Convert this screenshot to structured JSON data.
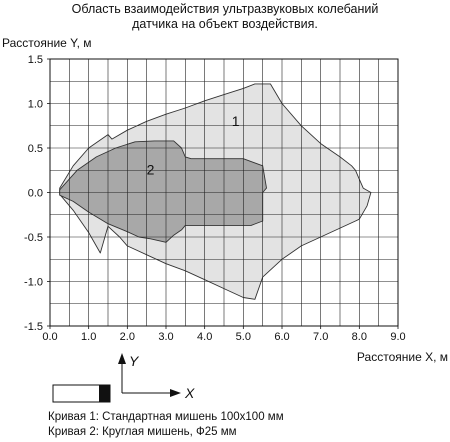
{
  "title_line1": "Область взаимодействия ультразвуковых колебаний",
  "title_line2": "датчика на объект воздействия.",
  "chart_data": {
    "type": "area",
    "xlabel": "Расстояние X, м",
    "ylabel": "Расстояние Y, м",
    "xlim": [
      0,
      9
    ],
    "ylim": [
      -1.5,
      1.5
    ],
    "grid": true,
    "x_ticks": [
      "0.0",
      "1.0",
      "2.0",
      "3.0",
      "4.0",
      "5.0",
      "6.0",
      "7.0",
      "8.0",
      "9.0"
    ],
    "y_ticks": [
      "1.5",
      "1.0",
      "0.5",
      "0.0",
      "-0.5",
      "-1.0",
      "-1.5"
    ],
    "series": [
      {
        "name": "1",
        "color": "#e3e3e3",
        "x": [
          0.25,
          0.6,
          1.0,
          1.5,
          1.6,
          2.0,
          2.5,
          3.0,
          3.5,
          4.0,
          4.5,
          5.0,
          5.3,
          5.7,
          6.0,
          6.5,
          7.0,
          7.5,
          7.8,
          7.9,
          8.0,
          8.1,
          8.3,
          8.2,
          8.0,
          7.9,
          7.5,
          7.0,
          6.5,
          6.0,
          5.5,
          5.3,
          5.0,
          4.5,
          4.0,
          3.5,
          3.0,
          2.5,
          2.0,
          1.8,
          1.5,
          1.3,
          1.0,
          0.6,
          0.25
        ],
        "y": [
          0.05,
          0.3,
          0.5,
          0.65,
          0.6,
          0.7,
          0.8,
          0.88,
          0.95,
          1.03,
          1.1,
          1.17,
          1.22,
          1.22,
          1.0,
          0.75,
          0.55,
          0.4,
          0.3,
          0.25,
          0.15,
          0.05,
          0.0,
          -0.15,
          -0.3,
          -0.32,
          -0.4,
          -0.5,
          -0.6,
          -0.75,
          -0.95,
          -1.2,
          -1.18,
          -1.08,
          -0.98,
          -0.88,
          -0.8,
          -0.7,
          -0.6,
          -0.5,
          -0.38,
          -0.68,
          -0.45,
          -0.2,
          -0.02
        ]
      },
      {
        "name": "2",
        "color": "#a8a8a8",
        "x": [
          0.25,
          0.7,
          1.2,
          1.7,
          2.2,
          2.7,
          3.2,
          3.4,
          3.5,
          3.65,
          4.0,
          4.5,
          5.0,
          5.5,
          5.6,
          5.5,
          5.5,
          5.2,
          4.5,
          4.0,
          3.5,
          3.4,
          3.2,
          3.0,
          2.6,
          2.3,
          2.0,
          1.5,
          1.0,
          0.6,
          0.25
        ],
        "y": [
          0.03,
          0.25,
          0.4,
          0.5,
          0.57,
          0.58,
          0.58,
          0.5,
          0.4,
          0.38,
          0.38,
          0.38,
          0.38,
          0.3,
          0.05,
          0.0,
          -0.32,
          -0.37,
          -0.37,
          -0.37,
          -0.37,
          -0.42,
          -0.48,
          -0.56,
          -0.52,
          -0.5,
          -0.44,
          -0.35,
          -0.22,
          -0.1,
          -0.03
        ]
      }
    ],
    "legend_entries": [
      "Кривая 1: Стандартная мишень 100x100 мм",
      "Кривая 2: Круглая мишень, Ф25 мм"
    ],
    "sensor_axis_labels": {
      "y": "Y",
      "x": "X"
    }
  }
}
